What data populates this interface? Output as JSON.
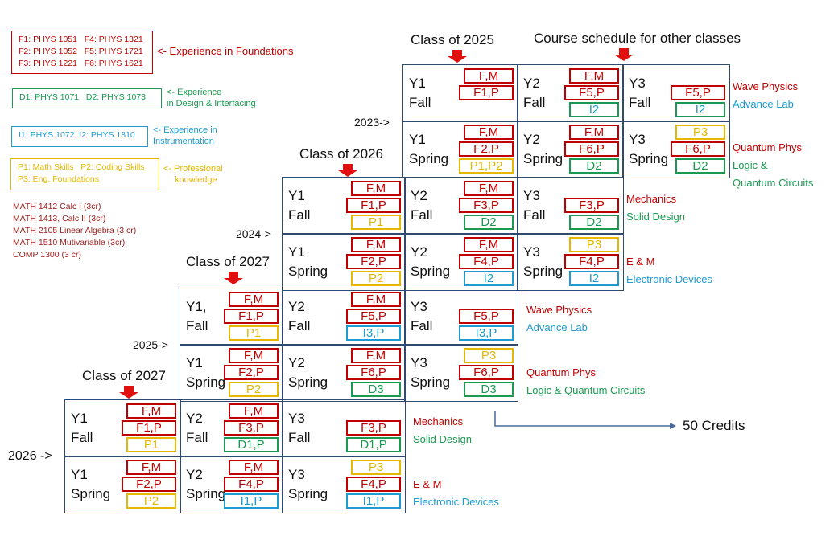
{
  "colors": {
    "F": "#c00000",
    "D": "#1a9a50",
    "I": "#1e9bd0",
    "P": "#e6b800",
    "grid": "#2f4a6e",
    "math": "#a02020"
  },
  "legend": {
    "foundations": {
      "lines": [
        "F1: PHYS 1051   F4: PHYS 1321",
        "F2: PHYS 1052   F5: PHYS 1721",
        "F3: PHYS 1221   F6: PHYS 1621"
      ],
      "label": [
        "<- Experience in Foundations"
      ]
    },
    "design": {
      "lines": [
        "D1: PHYS 1071   D2: PHYS 1073"
      ],
      "label": [
        "<- Experience",
        "in Design & Interfacing"
      ]
    },
    "instrumentation": {
      "lines": [
        "I1: PHYS 1072  I2: PHYS 1810"
      ],
      "label": [
        "<- Experience in",
        "Instrumentation"
      ]
    },
    "professional": {
      "lines": [
        "P1: Math Skills   P2: Coding Skills",
        "P3: Eng. Foundations"
      ],
      "label": [
        "<- Professional",
        "knowledge"
      ]
    },
    "math": [
      "MATH 1412 Calc I (3cr)",
      "MATH 1413, Calc II (3cr)",
      "MATH 2105 Linear Algebra (3 cr)",
      "MATH 1510 Mutivariable (3cr)",
      "COMP 1300 (3 cr)"
    ]
  },
  "headers": [
    "Class of 2025",
    "Course schedule for other classes",
    "Class of 2026",
    "Class of 2027",
    "Class of 2027"
  ],
  "years": [
    "2023->",
    "2024->",
    "2025->",
    "2026 ->"
  ],
  "grids": [
    {
      "rows": [
        [
          {
            "t": [
              "Y1",
              "Fall"
            ],
            "b": [
              [
                "F,M",
                "F"
              ],
              [
                "F1,P",
                "F"
              ]
            ]
          },
          {
            "t": [
              "Y2",
              "Fall"
            ],
            "b": [
              [
                "F,M",
                "F"
              ],
              [
                "F5,P",
                "F"
              ],
              [
                "I2",
                "I"
              ]
            ]
          },
          {
            "t": [
              "Y3",
              "Fall"
            ],
            "b": [
              [
                "F5,P",
                "F"
              ],
              [
                "I2",
                "I"
              ]
            ]
          }
        ],
        [
          {
            "t": [
              "Y1",
              "Spring"
            ],
            "b": [
              [
                "F,M",
                "F"
              ],
              [
                "F2,P",
                "F"
              ],
              [
                "P1,P2",
                "P"
              ]
            ]
          },
          {
            "t": [
              "Y2",
              "Spring"
            ],
            "b": [
              [
                "F,M",
                "F"
              ],
              [
                "F6,P",
                "F"
              ],
              [
                "D2",
                "D"
              ]
            ]
          },
          {
            "t": [
              "Y3",
              "Spring"
            ],
            "b": [
              [
                "P3",
                "P"
              ],
              [
                "F6,P",
                "F"
              ],
              [
                "D2",
                "D"
              ]
            ]
          }
        ]
      ],
      "side": [
        [
          [
            "Wave Physics",
            "F"
          ],
          [
            "Advance Lab",
            "I"
          ]
        ],
        [
          [
            "Quantum Phys",
            "F"
          ],
          [
            "Logic &",
            "D"
          ],
          [
            "Quantum Circuits",
            "D"
          ]
        ]
      ]
    },
    {
      "rows": [
        [
          {
            "t": [
              "Y1",
              "Fall"
            ],
            "b": [
              [
                "F,M",
                "F"
              ],
              [
                "F1,P",
                "F"
              ],
              [
                "P1",
                "P"
              ]
            ]
          },
          {
            "t": [
              "Y2",
              "Fall"
            ],
            "b": [
              [
                "F,M",
                "F"
              ],
              [
                "F3,P",
                "F"
              ],
              [
                "D2",
                "D"
              ]
            ]
          },
          {
            "t": [
              "Y3",
              "Fall"
            ],
            "b": [
              [
                "F3,P",
                "F"
              ],
              [
                "D2",
                "D"
              ]
            ]
          }
        ],
        [
          {
            "t": [
              "Y1",
              "Spring"
            ],
            "b": [
              [
                "F,M",
                "F"
              ],
              [
                "F2,P",
                "F"
              ],
              [
                "P2",
                "P"
              ]
            ]
          },
          {
            "t": [
              "Y2",
              "Spring"
            ],
            "b": [
              [
                "F,M",
                "F"
              ],
              [
                "F4,P",
                "F"
              ],
              [
                "I2",
                "I"
              ]
            ]
          },
          {
            "t": [
              "Y3",
              "Spring"
            ],
            "b": [
              [
                "P3",
                "P"
              ],
              [
                "F4,P",
                "F"
              ],
              [
                "I2",
                "I"
              ]
            ]
          }
        ]
      ],
      "side": [
        [
          [
            "Mechanics",
            "F"
          ],
          [
            "Solid Design",
            "D"
          ]
        ],
        [
          [
            "E & M",
            "F"
          ],
          [
            "Electronic Devices",
            "I"
          ]
        ]
      ]
    },
    {
      "rows": [
        [
          {
            "t": [
              "Y1,",
              "Fall"
            ],
            "b": [
              [
                "F,M",
                "F"
              ],
              [
                "F1,P",
                "F"
              ],
              [
                "P1",
                "P"
              ]
            ]
          },
          {
            "t": [
              "Y2",
              "Fall"
            ],
            "b": [
              [
                "F,M",
                "F"
              ],
              [
                "F5,P",
                "F"
              ],
              [
                "I3,P",
                "I"
              ]
            ]
          },
          {
            "t": [
              "Y3",
              "Fall"
            ],
            "b": [
              [
                "F5,P",
                "F"
              ],
              [
                "I3,P",
                "I"
              ]
            ]
          }
        ],
        [
          {
            "t": [
              "Y1",
              "Spring"
            ],
            "b": [
              [
                "F,M",
                "F"
              ],
              [
                "F2,P",
                "F"
              ],
              [
                "P2",
                "P"
              ]
            ]
          },
          {
            "t": [
              "Y2",
              "Spring"
            ],
            "b": [
              [
                "F,M",
                "F"
              ],
              [
                "F6,P",
                "F"
              ],
              [
                "D3",
                "D"
              ]
            ]
          },
          {
            "t": [
              "Y3",
              "Spring"
            ],
            "b": [
              [
                "P3",
                "P"
              ],
              [
                "F6,P",
                "F"
              ],
              [
                "D3",
                "D"
              ]
            ]
          }
        ]
      ],
      "side": [
        [
          [
            "Wave Physics",
            "F"
          ],
          [
            "Advance Lab",
            "I"
          ]
        ],
        [
          [
            "Quantum Phys",
            "F"
          ],
          [
            "Logic & Quantum Circuits",
            "D"
          ]
        ]
      ]
    },
    {
      "rows": [
        [
          {
            "t": [
              "Y1",
              "Fall"
            ],
            "b": [
              [
                "F,M",
                "F"
              ],
              [
                "F1,P",
                "F"
              ],
              [
                "P1",
                "P"
              ]
            ]
          },
          {
            "t": [
              "Y2",
              "Fall"
            ],
            "b": [
              [
                "F,M",
                "F"
              ],
              [
                "F3,P",
                "F"
              ],
              [
                "D1,P",
                "D"
              ]
            ]
          },
          {
            "t": [
              "Y3",
              "Fall"
            ],
            "b": [
              [
                "F3,P",
                "F"
              ],
              [
                "D1,P",
                "D"
              ]
            ]
          }
        ],
        [
          {
            "t": [
              "Y1",
              "Spring"
            ],
            "b": [
              [
                "F,M",
                "F"
              ],
              [
                "F2,P",
                "F"
              ],
              [
                "P2",
                "P"
              ]
            ]
          },
          {
            "t": [
              "Y2",
              "Spring"
            ],
            "b": [
              [
                "F,M",
                "F"
              ],
              [
                "F4,P",
                "F"
              ],
              [
                "I1,P",
                "I"
              ]
            ]
          },
          {
            "t": [
              "Y3",
              "Spring"
            ],
            "b": [
              [
                "P3",
                "P"
              ],
              [
                "F4,P",
                "F"
              ],
              [
                "I1,P",
                "I"
              ]
            ]
          }
        ]
      ],
      "side": [
        [
          [
            "Mechanics",
            "F"
          ],
          [
            "Solid Design",
            "D"
          ]
        ],
        [
          [
            "E & M",
            "F"
          ],
          [
            "Electronic Devices",
            "I"
          ]
        ]
      ]
    }
  ],
  "total": "50 Credits"
}
